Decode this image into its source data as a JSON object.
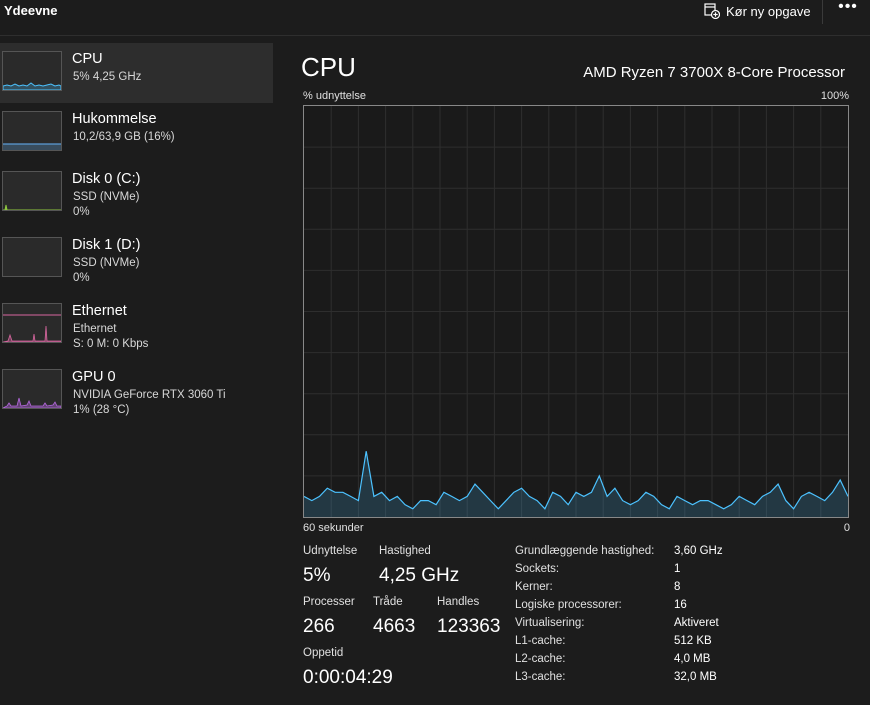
{
  "header": {
    "title": "Ydeevne",
    "run_task_label": "Kør ny opgave",
    "more_label": "•••"
  },
  "sidebar": {
    "items": [
      {
        "name": "CPU",
        "line1": "5% 4,25 GHz",
        "line2": ""
      },
      {
        "name": "Hukommelse",
        "line1": "10,2/63,9 GB (16%)",
        "line2": ""
      },
      {
        "name": "Disk 0 (C:)",
        "line1": "SSD (NVMe)",
        "line2": "0%"
      },
      {
        "name": "Disk 1 (D:)",
        "line1": "SSD (NVMe)",
        "line2": "0%"
      },
      {
        "name": "Ethernet",
        "line1": "Ethernet",
        "line2": "S: 0 M: 0 Kbps"
      },
      {
        "name": "GPU 0",
        "line1": "NVIDIA GeForce RTX 3060 Ti",
        "line2": "1% (28 °C)"
      }
    ]
  },
  "main": {
    "title": "CPU",
    "model": "AMD Ryzen 7 3700X 8-Core Processor",
    "graph_label_left": "% udnyttelse",
    "graph_label_right": "100%",
    "axis_left": "60 sekunder",
    "axis_right": "0"
  },
  "stats": {
    "utilization_label": "Udnyttelse",
    "utilization_value": "5%",
    "speed_label": "Hastighed",
    "speed_value": "4,25 GHz",
    "processes_label": "Processer",
    "processes_value": "266",
    "threads_label": "Tråde",
    "threads_value": "4663",
    "handles_label": "Handles",
    "handles_value": "123363",
    "uptime_label": "Oppetid",
    "uptime_value": "0:00:04:29"
  },
  "specs": [
    {
      "label": "Grundlæggende hastighed:",
      "value": "3,60 GHz"
    },
    {
      "label": "Sockets:",
      "value": "1"
    },
    {
      "label": "Kerner:",
      "value": "8"
    },
    {
      "label": "Logiske processorer:",
      "value": "16"
    },
    {
      "label": "Virtualisering:",
      "value": "Aktiveret"
    },
    {
      "label": "L1-cache:",
      "value": "512 KB"
    },
    {
      "label": "L2-cache:",
      "value": "4,0 MB"
    },
    {
      "label": "L3-cache:",
      "value": "32,0 MB"
    }
  ],
  "colors": {
    "cpu": "#4cc2ff",
    "memory": "#5b9bd5",
    "disk": "#8ec63f",
    "ethernet": "#d867a0",
    "gpu": "#b668e0"
  },
  "chart_data": {
    "type": "area",
    "ylim": [
      0,
      100
    ],
    "x_range_seconds": [
      60,
      0
    ],
    "values": [
      5,
      4,
      5,
      7,
      6,
      6,
      5,
      4,
      16,
      5,
      6,
      4,
      5,
      3,
      2,
      4,
      4,
      3,
      6,
      5,
      4,
      5,
      8,
      6,
      4,
      2,
      4,
      6,
      7,
      5,
      4,
      2,
      6,
      5,
      3,
      6,
      5,
      6,
      10,
      5,
      7,
      4,
      3,
      4,
      6,
      5,
      3,
      2,
      5,
      4,
      3,
      4,
      4,
      3,
      2,
      3,
      5,
      4,
      3,
      5,
      6,
      8,
      4,
      2,
      5,
      6,
      5,
      4,
      6,
      9,
      5
    ]
  }
}
